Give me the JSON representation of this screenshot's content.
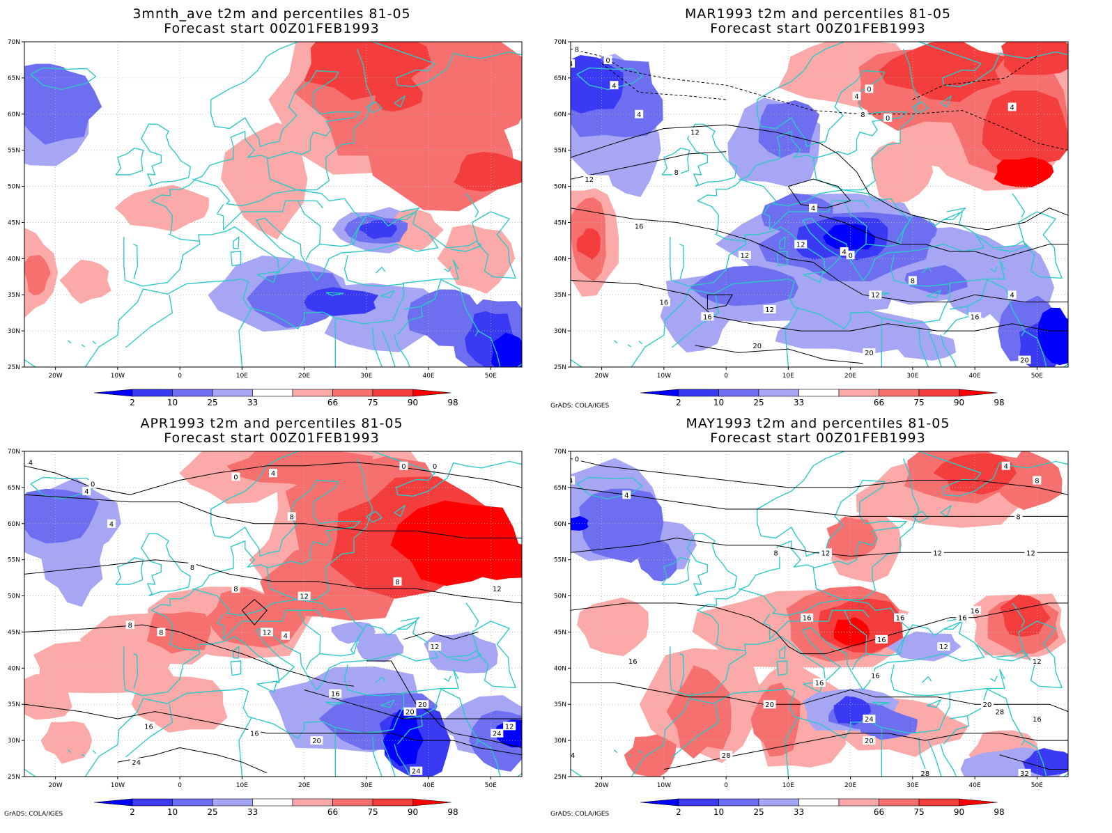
{
  "panels": [
    {
      "id": "p1",
      "title_line1": "3mnth_ave t2m and percentiles 81-05",
      "title_line2": "Forecast start 00Z01FEB1993",
      "show_credit": false
    },
    {
      "id": "p2",
      "title_line1": "MAR1993 t2m and percentiles 81-05",
      "title_line2": "Forecast start 00Z01FEB1993",
      "show_credit": true
    },
    {
      "id": "p3",
      "title_line1": "APR1993 t2m and percentiles 81-05",
      "title_line2": "Forecast start 00Z01FEB1993",
      "show_credit": true
    },
    {
      "id": "p4",
      "title_line1": "MAY1993 t2m and percentiles 81-05",
      "title_line2": "Forecast start 00Z01FEB1993",
      "show_credit": true
    }
  ],
  "credit": "GrADS: COLA/IGES",
  "lat_labels": [
    "70N",
    "65N",
    "60N",
    "55N",
    "50N",
    "45N",
    "40N",
    "35N",
    "30N",
    "25N"
  ],
  "lon_labels": [
    "20W",
    "10W",
    "0",
    "10E",
    "20E",
    "30E",
    "40E",
    "50E"
  ],
  "colorbar": {
    "labels": [
      "2",
      "10",
      "25",
      "33",
      "66",
      "75",
      "90",
      "98"
    ],
    "colors": [
      "#0000ff",
      "#3a3af5",
      "#6e6ef0",
      "#a6a6f5",
      "#ffffff",
      "#fba9a9",
      "#f77070",
      "#f43d3d",
      "#ff0000"
    ]
  },
  "colors": {
    "coast": "#2fc8c8",
    "contour": "#000000",
    "blue_shades": [
      "#a6a6f5",
      "#6e6ef0",
      "#3a3af5",
      "#0000ff"
    ],
    "red_shades": [
      "#fba9a9",
      "#f77070",
      "#f43d3d",
      "#ff0000"
    ]
  },
  "contour_labels": {
    "p2": [
      "8",
      "4",
      "0",
      "4",
      "4",
      "0",
      "4",
      "8",
      "0",
      "4",
      "12",
      "12",
      "8",
      "4",
      "4",
      "16",
      "12",
      "12",
      "0",
      "8",
      "12",
      "16",
      "16",
      "12",
      "4",
      "16",
      "20",
      "20",
      "20"
    ],
    "p3": [
      "4",
      "0",
      "4",
      "0",
      "4",
      "0",
      "0",
      "4",
      "8",
      "8",
      "8",
      "8",
      "12",
      "12",
      "8",
      "12",
      "8",
      "4",
      "12",
      "16",
      "20",
      "16",
      "20",
      "16",
      "12",
      "20",
      "24",
      "24",
      "24"
    ],
    "p4": [
      "0",
      "4",
      "4",
      "8",
      "4",
      "8",
      "8",
      "12",
      "12",
      "12",
      "16",
      "16",
      "16",
      "16",
      "16",
      "12",
      "12",
      "16",
      "16",
      "16",
      "20",
      "24",
      "20",
      "24",
      "28",
      "28",
      "16",
      "20",
      "32",
      "28"
    ]
  }
}
